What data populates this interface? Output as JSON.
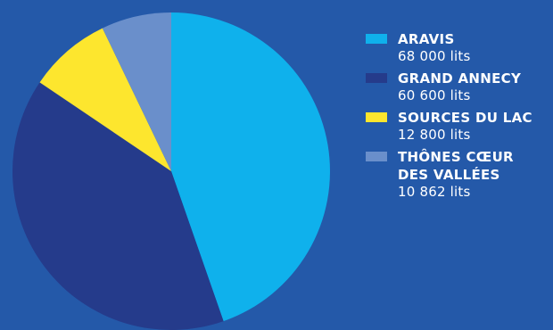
{
  "chart_data": {
    "type": "pie",
    "title": "",
    "slices": [
      {
        "label": "ARAVIS",
        "value": 68000,
        "value_label": "68 000 lits",
        "color": "#0fb1ec"
      },
      {
        "label": "GRAND ANNECY",
        "value": 60600,
        "value_label": "60 600 lits",
        "color": "#253b8b"
      },
      {
        "label": "SOURCES DU LAC",
        "value": 12800,
        "value_label": "12 800 lits",
        "color": "#fde62e"
      },
      {
        "label": "THÔNES CŒUR\nDES VALLÉES",
        "value": 10862,
        "value_label": "10 862 lits",
        "color": "#6a8fcb"
      }
    ],
    "legend_position": "right"
  },
  "colors": {
    "background": "#2459a9",
    "text": "#ffffff"
  }
}
